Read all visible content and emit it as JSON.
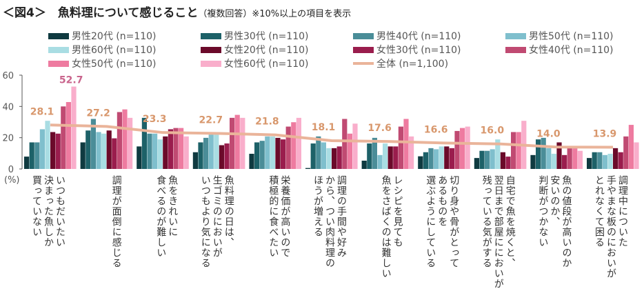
{
  "title": {
    "main": "＜図4＞　魚料理について感じること",
    "sub": "（複数回答）※10%以上の項目を表示"
  },
  "chart_data": {
    "type": "bar",
    "ylim": [
      0,
      60
    ],
    "yticks": [
      0,
      20,
      40,
      60
    ],
    "ylabel": "(%)",
    "categories": [
      [
        "いつもだいたい",
        "決まった魚しか",
        "買っていない"
      ],
      [
        "調理が面倒に感じる"
      ],
      [
        "魚をきれいに",
        "食べるのが難しい"
      ],
      [
        "魚料理の日は、",
        "生ゴミのにおいが",
        "いつもより気になる"
      ],
      [
        "栄養価が高いので",
        "積極的に食べたい"
      ],
      [
        "調理の手間や好み",
        "から、つい肉料理の",
        "ほうが増える"
      ],
      [
        "レシピを見ても",
        "魚をさばくのは難しい"
      ],
      [
        "切り身や骨がとって",
        "あるものを",
        "選ぶようにしている"
      ],
      [
        "自宅で魚を焼くと、",
        "翌日まで部屋ににおいが",
        "残っている気がする"
      ],
      [
        "魚の値段が高いのか",
        "安いのか、",
        "判断がつかない"
      ],
      [
        "調理中についた",
        "手やまな板のにおいが",
        "とれなくて困る"
      ]
    ],
    "series": [
      {
        "name": "男性20代 (n=110)",
        "color": "#0f3a40",
        "values": [
          7.9,
          17.0,
          14.4,
          10.7,
          9.7,
          0.6,
          5.3,
          8.1,
          7.0,
          8.9,
          7.0
        ]
      },
      {
        "name": "男性30代 (n=110)",
        "color": "#1d6168",
        "values": [
          17.0,
          24.6,
          32.7,
          17.0,
          17.0,
          16.3,
          16.3,
          10.7,
          11.6,
          18.9,
          10.7
        ]
      },
      {
        "name": "男性40代 (n=110)",
        "color": "#4a8d98",
        "values": [
          17.0,
          32.0,
          22.6,
          19.9,
          18.0,
          20.8,
          19.9,
          13.3,
          11.6,
          19.9,
          10.7
        ]
      },
      {
        "name": "男性50代 (n=110)",
        "color": "#7fbfcd",
        "values": [
          25.4,
          23.6,
          22.6,
          22.0,
          20.8,
          17.0,
          8.9,
          12.6,
          12.6,
          13.3,
          8.9
        ]
      },
      {
        "name": "男性60代 (n=110)",
        "color": "#a9dde3",
        "values": [
          30.8,
          22.6,
          18.9,
          22.0,
          20.8,
          13.3,
          16.3,
          14.4,
          18.9,
          9.7,
          9.7
        ]
      },
      {
        "name": "女性20代 (n=110)",
        "color": "#6b0a2a",
        "values": [
          23.6,
          24.6,
          20.8,
          15.2,
          19.9,
          13.3,
          14.4,
          14.4,
          10.7,
          17.0,
          13.3
        ]
      },
      {
        "name": "女性30代 (n=110)",
        "color": "#9a1d4d",
        "values": [
          22.6,
          19.6,
          25.4,
          16.3,
          18.9,
          14.4,
          14.4,
          13.3,
          7.9,
          8.9,
          10.7
        ]
      },
      {
        "name": "女性40代 (n=110)",
        "color": "#c04a72",
        "values": [
          40.0,
          36.4,
          26.2,
          32.7,
          27.1,
          32.0,
          27.1,
          24.3,
          23.6,
          13.3,
          20.8
        ]
      },
      {
        "name": "女性50代 (n=110)",
        "color": "#ee7ba0",
        "values": [
          42.8,
          38.1,
          26.2,
          34.6,
          29.9,
          22.6,
          32.0,
          26.2,
          23.6,
          13.3,
          28.2
        ]
      },
      {
        "name": "女性60代 (n=110)",
        "color": "#f9aecb",
        "values": [
          52.7,
          32.7,
          20.8,
          32.7,
          32.7,
          29.0,
          20.8,
          27.1,
          30.8,
          11.6,
          17.0
        ]
      }
    ],
    "line": {
      "name": "全体 (n=1,100)",
      "color": "#eab49a",
      "values": [
        28.1,
        27.2,
        23.3,
        22.7,
        21.8,
        18.1,
        17.6,
        16.6,
        16.0,
        14.0,
        13.9
      ],
      "labels": [
        "28.1",
        "27.2",
        "23.3",
        "22.7",
        "21.8",
        "18.1",
        "17.6",
        "16.6",
        "16.0",
        "14.0",
        "13.9"
      ]
    },
    "annotation": "52.7"
  }
}
